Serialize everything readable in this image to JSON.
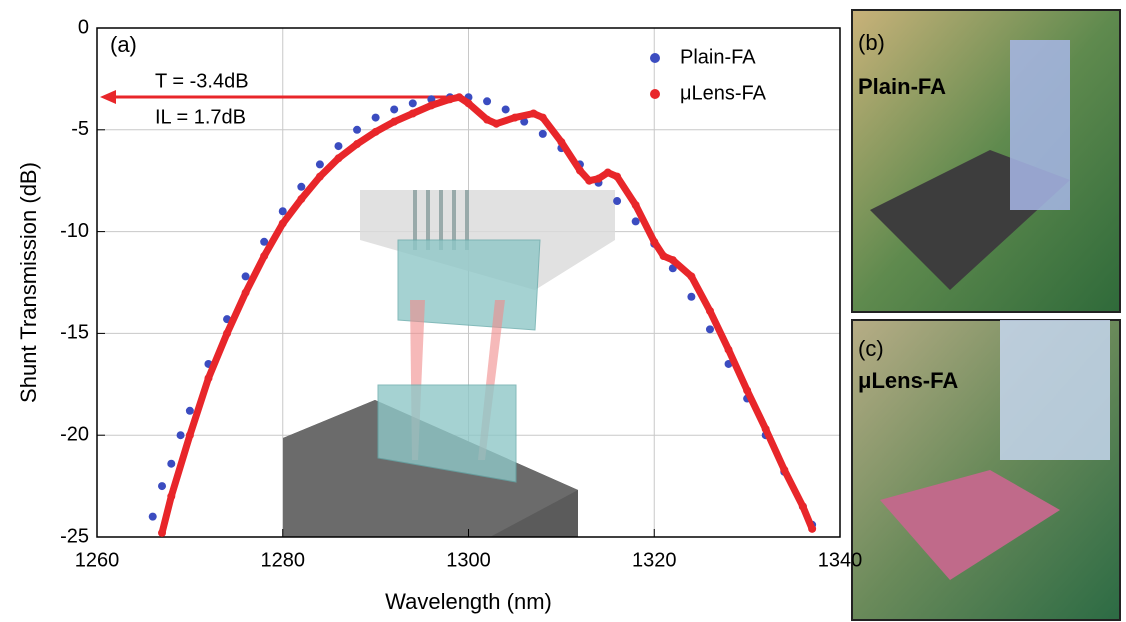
{
  "chart_data": {
    "type": "scatter",
    "xlabel": "Wavelength (nm)",
    "ylabel": "Shunt Transmission (dB)",
    "xlim": [
      1260,
      1340
    ],
    "xticks": [
      1260,
      1280,
      1300,
      1320,
      1340
    ],
    "ylim": [
      -25,
      0
    ],
    "yticks": [
      -25,
      -20,
      -15,
      -10,
      -5,
      0
    ],
    "grid": true,
    "legend": "upper right",
    "annotations": [
      "(a)",
      "T = -3.4dB",
      "IL = 1.7dB"
    ],
    "series": [
      {
        "name": "Plain-FA",
        "color": "#3b4cc0",
        "x": [
          1266,
          1267,
          1268,
          1269,
          1270,
          1272,
          1274,
          1276,
          1278,
          1280,
          1282,
          1284,
          1286,
          1288,
          1290,
          1292,
          1294,
          1296,
          1298,
          1300,
          1302,
          1304,
          1306,
          1308,
          1310,
          1312,
          1314,
          1316,
          1318,
          1320,
          1322,
          1324,
          1326,
          1328,
          1330,
          1332,
          1334,
          1336,
          1337
        ],
        "values": [
          -24,
          -22.5,
          -21.4,
          -20,
          -18.8,
          -16.5,
          -14.3,
          -12.2,
          -10.5,
          -9,
          -7.8,
          -6.7,
          -5.8,
          -5,
          -4.4,
          -4,
          -3.7,
          -3.5,
          -3.4,
          -3.4,
          -3.6,
          -4,
          -4.6,
          -5.2,
          -5.9,
          -6.7,
          -7.6,
          -8.5,
          -9.5,
          -10.6,
          -11.8,
          -13.2,
          -14.8,
          -16.5,
          -18.2,
          -20,
          -21.8,
          -23.5,
          -24.4
        ]
      },
      {
        "name": "μLens-FA",
        "color": "#e8262a",
        "x": [
          1267,
          1268,
          1270,
          1272,
          1274,
          1276,
          1278,
          1280,
          1282,
          1284,
          1286,
          1288,
          1290,
          1292,
          1294,
          1296,
          1298,
          1299,
          1300,
          1302,
          1303,
          1305,
          1307,
          1308,
          1310,
          1312,
          1313,
          1314,
          1315,
          1316,
          1318,
          1320,
          1321,
          1322,
          1324,
          1326,
          1328,
          1330,
          1332,
          1334,
          1336,
          1337
        ],
        "values": [
          -24.8,
          -23,
          -20,
          -17.2,
          -15,
          -13,
          -11.2,
          -9.6,
          -8.4,
          -7.3,
          -6.4,
          -5.7,
          -5.1,
          -4.6,
          -4.2,
          -3.8,
          -3.5,
          -3.4,
          -3.7,
          -4.5,
          -4.7,
          -4.4,
          -4.2,
          -4.4,
          -5.6,
          -7,
          -7.5,
          -7.4,
          -7.1,
          -7.3,
          -8.7,
          -10.5,
          -11.2,
          -11.4,
          -12.2,
          -13.9,
          -15.8,
          -17.8,
          -19.7,
          -21.7,
          -23.5,
          -24.6
        ]
      }
    ]
  },
  "photos": [
    {
      "tag": "(b)",
      "label": "Plain-FA"
    },
    {
      "tag": "(c)",
      "label": "μLens-FA"
    }
  ]
}
